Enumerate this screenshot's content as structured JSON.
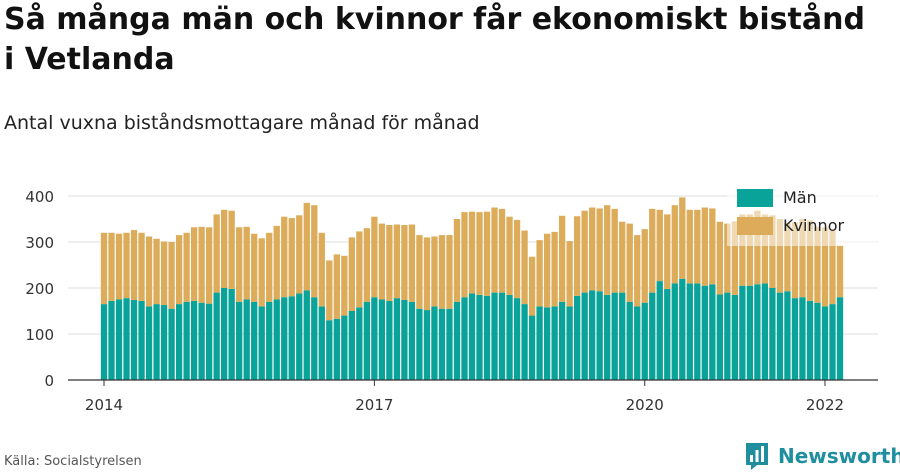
{
  "title": "Så många män och kvinnor får ekonomiskt bistånd i Vetlanda",
  "subtitle": "Antal vuxna biståndsmottagare månad för månad",
  "source": "Källa: Socialstyrelsen",
  "brand": {
    "name": "Newsworthy",
    "icon": "newsworthy-logo-icon"
  },
  "colors": {
    "men": "#0aa39a",
    "women": "#dcac5a",
    "grid": "#dddddd",
    "axis": "#333333"
  },
  "chart_data": {
    "type": "bar",
    "stacked": true,
    "x_start": "2014-01",
    "x_end": "2022-01",
    "x_ticks": [
      "2014",
      "2017",
      "2020",
      "2022"
    ],
    "ylim": [
      0,
      400
    ],
    "y_ticks": [
      0,
      100,
      200,
      300,
      400
    ],
    "grid": true,
    "legend_position": "top-right",
    "series": [
      {
        "name": "Män",
        "color": "#0aa39a",
        "values": [
          165,
          172,
          175,
          178,
          174,
          172,
          160,
          165,
          163,
          155,
          165,
          170,
          172,
          168,
          166,
          190,
          200,
          198,
          170,
          175,
          170,
          160,
          170,
          175,
          180,
          182,
          188,
          195,
          180,
          160,
          130,
          133,
          140,
          150,
          158,
          170,
          180,
          175,
          172,
          178,
          174,
          170,
          155,
          152,
          160,
          155,
          155,
          170,
          180,
          188,
          185,
          183,
          190,
          190,
          185,
          178,
          165,
          140,
          160,
          158,
          160,
          170,
          160,
          183,
          190,
          195,
          193,
          185,
          190,
          190,
          170,
          160,
          168,
          190,
          215,
          198,
          210,
          220,
          210,
          210,
          205,
          208,
          186,
          190,
          185,
          205,
          205,
          208,
          210,
          200,
          190,
          193,
          178,
          180,
          172,
          168,
          160,
          165,
          180
        ]
      },
      {
        "name": "Kvinnor",
        "color": "#dcac5a",
        "values": [
          155,
          148,
          143,
          142,
          152,
          148,
          152,
          142,
          138,
          145,
          150,
          150,
          160,
          165,
          166,
          170,
          170,
          170,
          162,
          158,
          148,
          148,
          150,
          160,
          175,
          170,
          170,
          190,
          200,
          160,
          130,
          140,
          130,
          160,
          165,
          160,
          175,
          165,
          165,
          160,
          163,
          168,
          160,
          158,
          152,
          160,
          160,
          180,
          185,
          178,
          180,
          183,
          185,
          182,
          170,
          170,
          160,
          128,
          144,
          160,
          162,
          187,
          142,
          173,
          178,
          180,
          180,
          195,
          182,
          154,
          170,
          155,
          160,
          182,
          155,
          162,
          170,
          177,
          160,
          160,
          170,
          165,
          158,
          150,
          160,
          155,
          155,
          160,
          150,
          158,
          160,
          148,
          165,
          170,
          175,
          165,
          172,
          160,
          112
        ]
      }
    ]
  }
}
